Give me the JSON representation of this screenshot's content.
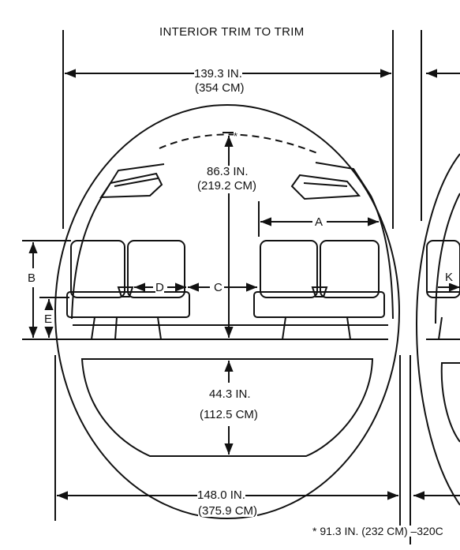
{
  "header": {
    "title": "INTERIOR TRIM TO TRIM"
  },
  "dimensions": {
    "top_width_in": "139.3 IN.",
    "top_width_cm": "(354 CM)",
    "ceiling_height_in": "86.3 IN.",
    "ceiling_height_cm": "(219.2 CM)",
    "cargo_height_in": "44.3 IN.",
    "cargo_height_cm": "(112.5 CM)",
    "bottom_width_in": "148.0 IN.",
    "bottom_width_cm": "(375.9 CM)"
  },
  "markers": {
    "asterisk": "*",
    "a": "A",
    "b": "B",
    "c": "C",
    "d": "D",
    "e": "E",
    "k": "K"
  },
  "footnote": "* 91.3 IN. (232 CM) –320C",
  "colors": {
    "ink": "#111111",
    "paper": "#ffffff"
  }
}
